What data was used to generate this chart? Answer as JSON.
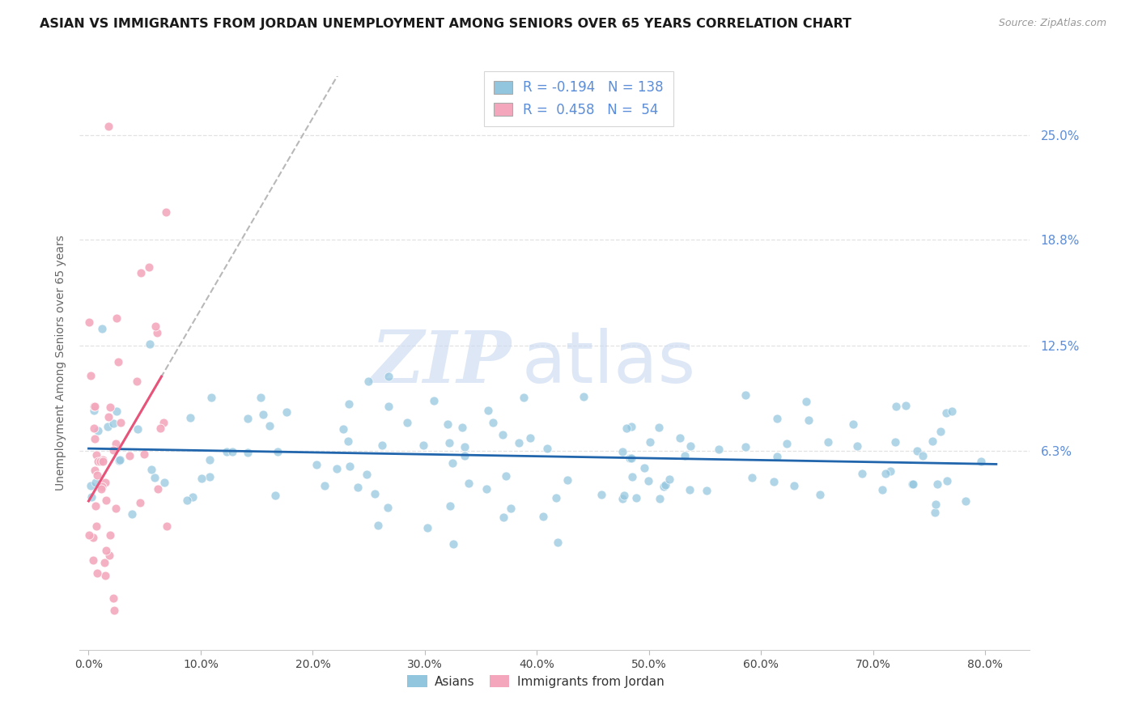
{
  "title": "ASIAN VS IMMIGRANTS FROM JORDAN UNEMPLOYMENT AMONG SENIORS OVER 65 YEARS CORRELATION CHART",
  "source": "Source: ZipAtlas.com",
  "ylabel": "Unemployment Among Seniors over 65 years",
  "xlabel_ticks": [
    "0.0%",
    "10.0%",
    "20.0%",
    "30.0%",
    "40.0%",
    "50.0%",
    "60.0%",
    "70.0%",
    "80.0%"
  ],
  "xlabel_vals": [
    0.0,
    0.1,
    0.2,
    0.3,
    0.4,
    0.5,
    0.6,
    0.7,
    0.8
  ],
  "ytick_vals": [
    0.063,
    0.125,
    0.188,
    0.25
  ],
  "ytick_labels": [
    "6.3%",
    "12.5%",
    "18.8%",
    "25.0%"
  ],
  "ylim": [
    -0.055,
    0.285
  ],
  "xlim": [
    -0.008,
    0.84
  ],
  "blue_R": -0.194,
  "blue_N": 138,
  "pink_R": 0.458,
  "pink_N": 54,
  "blue_color": "#92c5de",
  "pink_color": "#f4a7bc",
  "blue_line_color": "#2166ac",
  "pink_line_color": "#e8537a",
  "legend_label_blue": "Asians",
  "legend_label_pink": "Immigrants from Jordan",
  "title_fontsize": 11.5,
  "source_fontsize": 9,
  "legend_text_color": "#5b8dd9",
  "watermark_color": "#c8d8f0"
}
